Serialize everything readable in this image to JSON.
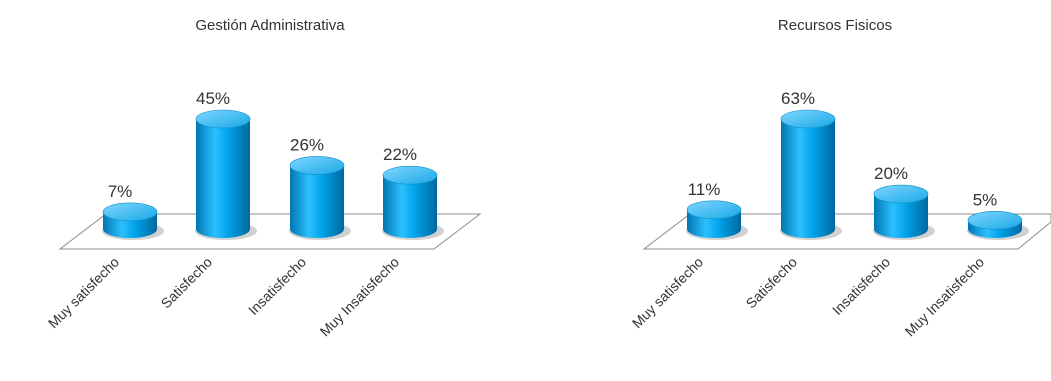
{
  "colors": {
    "bar": "#00a2e8",
    "bar_dark": "#0077b3",
    "bar_light": "#7fd6ff",
    "floor": "#808080"
  },
  "chart_data": [
    {
      "type": "bar",
      "title": "Gestión Administrativa",
      "categories": [
        "Muy satisfecho",
        "Satisfecho",
        "Insatisfecho",
        "Muy Insatisfecho"
      ],
      "values": [
        7,
        45,
        26,
        22
      ],
      "labels": [
        "7%",
        "45%",
        "26%",
        "22%"
      ],
      "unit": "%",
      "ylim": [
        0,
        45
      ],
      "grid": false,
      "legend": "none",
      "style": "3d-cylinder"
    },
    {
      "type": "bar",
      "title": "Recursos Fisicos",
      "categories": [
        "Muy satisfecho",
        "Satisfecho",
        "Insatisfecho",
        "Muy Insatisfecho"
      ],
      "values": [
        11,
        63,
        20,
        5
      ],
      "labels": [
        "11%",
        "63%",
        "20%",
        "5%"
      ],
      "unit": "%",
      "ylim": [
        0,
        63
      ],
      "grid": false,
      "legend": "none",
      "style": "3d-cylinder"
    }
  ]
}
